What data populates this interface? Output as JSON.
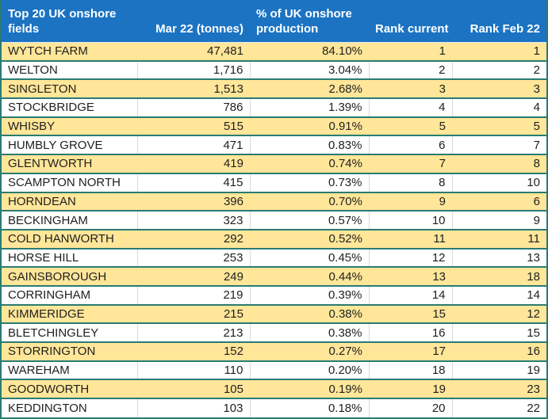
{
  "chart_data": {
    "type": "table",
    "title": "Top 20 UK onshore fields",
    "columns": [
      "Top 20 UK onshore fields",
      "Mar 22 (tonnes)",
      "% of UK onshore production",
      "Rank current",
      "Rank Feb 22"
    ],
    "rows": [
      {
        "field": "WYTCH FARM",
        "tonnes": "47,481",
        "pct": "84.10%",
        "rank_current": "1",
        "rank_feb22": "1"
      },
      {
        "field": "WELTON",
        "tonnes": "1,716",
        "pct": "3.04%",
        "rank_current": "2",
        "rank_feb22": "2"
      },
      {
        "field": "SINGLETON",
        "tonnes": "1,513",
        "pct": "2.68%",
        "rank_current": "3",
        "rank_feb22": "3"
      },
      {
        "field": "STOCKBRIDGE",
        "tonnes": "786",
        "pct": "1.39%",
        "rank_current": "4",
        "rank_feb22": "4"
      },
      {
        "field": "WHISBY",
        "tonnes": "515",
        "pct": "0.91%",
        "rank_current": "5",
        "rank_feb22": "5"
      },
      {
        "field": "HUMBLY GROVE",
        "tonnes": "471",
        "pct": "0.83%",
        "rank_current": "6",
        "rank_feb22": "7"
      },
      {
        "field": "GLENTWORTH",
        "tonnes": "419",
        "pct": "0.74%",
        "rank_current": "7",
        "rank_feb22": "8"
      },
      {
        "field": "SCAMPTON NORTH",
        "tonnes": "415",
        "pct": "0.73%",
        "rank_current": "8",
        "rank_feb22": "10"
      },
      {
        "field": "HORNDEAN",
        "tonnes": "396",
        "pct": "0.70%",
        "rank_current": "9",
        "rank_feb22": "6"
      },
      {
        "field": "BECKINGHAM",
        "tonnes": "323",
        "pct": "0.57%",
        "rank_current": "10",
        "rank_feb22": "9"
      },
      {
        "field": "COLD HANWORTH",
        "tonnes": "292",
        "pct": "0.52%",
        "rank_current": "11",
        "rank_feb22": "11"
      },
      {
        "field": "HORSE HILL",
        "tonnes": "253",
        "pct": "0.45%",
        "rank_current": "12",
        "rank_feb22": "13"
      },
      {
        "field": "GAINSBOROUGH",
        "tonnes": "249",
        "pct": "0.44%",
        "rank_current": "13",
        "rank_feb22": "18"
      },
      {
        "field": "CORRINGHAM",
        "tonnes": "219",
        "pct": "0.39%",
        "rank_current": "14",
        "rank_feb22": "14"
      },
      {
        "field": "KIMMERIDGE",
        "tonnes": "215",
        "pct": "0.38%",
        "rank_current": "15",
        "rank_feb22": "12"
      },
      {
        "field": "BLETCHINGLEY",
        "tonnes": "213",
        "pct": "0.38%",
        "rank_current": "16",
        "rank_feb22": "15"
      },
      {
        "field": "STORRINGTON",
        "tonnes": "152",
        "pct": "0.27%",
        "rank_current": "17",
        "rank_feb22": "16"
      },
      {
        "field": "WAREHAM",
        "tonnes": "110",
        "pct": "0.20%",
        "rank_current": "18",
        "rank_feb22": "19"
      },
      {
        "field": "GOODWORTH",
        "tonnes": "105",
        "pct": "0.19%",
        "rank_current": "19",
        "rank_feb22": "23"
      },
      {
        "field": "KEDDINGTON",
        "tonnes": "103",
        "pct": "0.18%",
        "rank_current": "20",
        "rank_feb22": "22"
      }
    ]
  },
  "header": {
    "col1_line1": "Top 20 UK onshore",
    "col1_line2": "fields",
    "col2": "Mar 22 (tonnes)",
    "col3_line1": "% of UK onshore",
    "col3_line2": "production",
    "col4": "Rank current",
    "col5": "Rank Feb 22"
  },
  "colors": {
    "header_bg": "#1b73c2",
    "header_text": "#ffffff",
    "row_alt_bg": "#ffe699",
    "row_bg": "#ffffff",
    "row_border": "#2a7b72",
    "column_divider": "#d9d9d9",
    "text": "#1f1f1f"
  }
}
